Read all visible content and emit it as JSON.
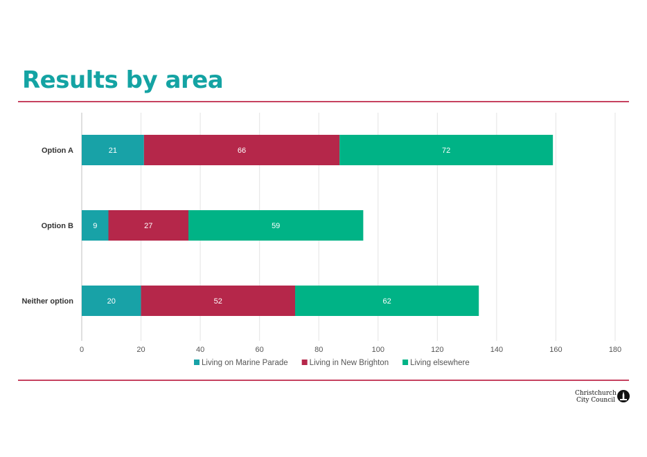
{
  "page": {
    "title": "Results by area"
  },
  "logo": {
    "line1": "Christchurch",
    "line2": "City Council"
  },
  "colors": {
    "marine": "#18a2a7",
    "brighton": "#b5274a",
    "elsewhere": "#00b386",
    "rule": "#c6415f",
    "title": "#14a3a3"
  },
  "chart_data": {
    "type": "bar",
    "orientation": "horizontal",
    "stacked": true,
    "categories": [
      "Option A",
      "Option B",
      "Neither option"
    ],
    "series": [
      {
        "name": "Living on Marine Parade",
        "values": [
          21,
          9,
          20
        ],
        "color": "#18a2a7"
      },
      {
        "name": "Living in New Brighton",
        "values": [
          66,
          27,
          52
        ],
        "color": "#b5274a"
      },
      {
        "name": "Living elsewhere",
        "values": [
          72,
          59,
          62
        ],
        "color": "#00b386"
      }
    ],
    "xlim": [
      0,
      180
    ],
    "xticks": [
      0,
      20,
      40,
      60,
      80,
      100,
      120,
      140,
      160,
      180
    ],
    "grid": true,
    "legend": "bottom",
    "title": "",
    "xlabel": "",
    "ylabel": ""
  }
}
